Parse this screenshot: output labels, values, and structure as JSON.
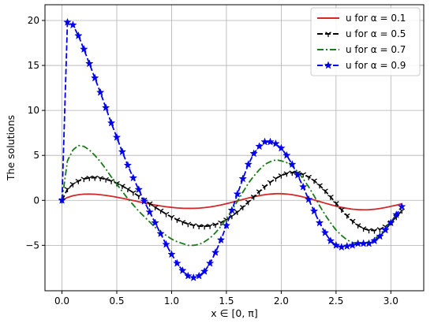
{
  "chart_data": {
    "type": "line",
    "title": "",
    "xlabel": "x ∈ [0, π]",
    "ylabel": "The solutions",
    "xlim": [
      -0.155,
      3.3
    ],
    "ylim": [
      -10.05,
      21.75
    ],
    "xticks": [
      0.0,
      0.5,
      1.0,
      1.5,
      2.0,
      2.5,
      3.0
    ],
    "xtick_labels": [
      "0.0",
      "0.5",
      "1.0",
      "1.5",
      "2.0",
      "2.5",
      "3.0"
    ],
    "yticks": [
      -5,
      0,
      5,
      10,
      15,
      20
    ],
    "ytick_labels": [
      "−5",
      "0",
      "5",
      "10",
      "15",
      "20"
    ],
    "grid": true,
    "legend_position": "top-right",
    "x": [
      0.0,
      0.05,
      0.1,
      0.15,
      0.2,
      0.25,
      0.3,
      0.35,
      0.4,
      0.45,
      0.5,
      0.55,
      0.6,
      0.65,
      0.7,
      0.75,
      0.8,
      0.85,
      0.9,
      0.95,
      1.0,
      1.05,
      1.1,
      1.15,
      1.2,
      1.25,
      1.3,
      1.35,
      1.4,
      1.45,
      1.5,
      1.55,
      1.6,
      1.65,
      1.7,
      1.75,
      1.8,
      1.85,
      1.9,
      1.95,
      2.0,
      2.05,
      2.1,
      2.15,
      2.2,
      2.25,
      2.3,
      2.35,
      2.4,
      2.45,
      2.5,
      2.55,
      2.6,
      2.65,
      2.7,
      2.75,
      2.8,
      2.85,
      2.9,
      2.95,
      3.0,
      3.05,
      3.1
    ],
    "series": [
      {
        "name": "u for α = 0.1",
        "color": "#d62728",
        "style": "solid",
        "marker": "none",
        "values": [
          0.0,
          0.32,
          0.52,
          0.63,
          0.69,
          0.7,
          0.68,
          0.63,
          0.55,
          0.46,
          0.35,
          0.23,
          0.11,
          -0.02,
          -0.15,
          -0.28,
          -0.4,
          -0.52,
          -0.62,
          -0.71,
          -0.78,
          -0.84,
          -0.88,
          -0.89,
          -0.89,
          -0.86,
          -0.81,
          -0.73,
          -0.63,
          -0.51,
          -0.37,
          -0.22,
          -0.06,
          0.1,
          0.26,
          0.4,
          0.53,
          0.63,
          0.7,
          0.74,
          0.74,
          0.7,
          0.63,
          0.52,
          0.38,
          0.22,
          0.05,
          -0.13,
          -0.31,
          -0.48,
          -0.64,
          -0.78,
          -0.89,
          -0.98,
          -1.03,
          -1.05,
          -1.04,
          -0.99,
          -0.91,
          -0.8,
          -0.67,
          -0.53,
          -0.38
        ]
      },
      {
        "name": "u for α = 0.5",
        "color": "#000000",
        "style": "dashed",
        "marker": "tri_down",
        "values": [
          0.0,
          1.25,
          1.8,
          2.15,
          2.38,
          2.5,
          2.52,
          2.47,
          2.34,
          2.15,
          1.9,
          1.6,
          1.25,
          0.87,
          0.47,
          0.06,
          -0.35,
          -0.76,
          -1.15,
          -1.52,
          -1.86,
          -2.16,
          -2.42,
          -2.63,
          -2.78,
          -2.87,
          -2.9,
          -2.84,
          -2.7,
          -2.47,
          -2.15,
          -1.75,
          -1.28,
          -0.75,
          -0.18,
          0.4,
          0.98,
          1.52,
          2.01,
          2.43,
          2.76,
          2.98,
          3.08,
          3.05,
          2.89,
          2.6,
          2.19,
          1.67,
          1.06,
          0.39,
          -0.32,
          -1.03,
          -1.7,
          -2.3,
          -2.78,
          -3.13,
          -3.33,
          -3.36,
          -3.22,
          -2.92,
          -2.45,
          -1.85,
          -1.14
        ]
      },
      {
        "name": "u for α = 0.7",
        "color": "#1a7a1a",
        "style": "dashdot",
        "marker": "none",
        "values": [
          0.0,
          4.4,
          5.6,
          6.1,
          6.0,
          5.6,
          5.0,
          4.3,
          3.5,
          2.6,
          1.8,
          1.0,
          0.2,
          -0.5,
          -1.2,
          -1.8,
          -2.4,
          -3.0,
          -3.5,
          -3.9,
          -4.3,
          -4.6,
          -4.8,
          -5.0,
          -5.0,
          -4.9,
          -4.6,
          -4.2,
          -3.6,
          -2.9,
          -2.0,
          -1.1,
          -0.1,
          0.9,
          1.9,
          2.7,
          3.4,
          4.0,
          4.3,
          4.5,
          4.4,
          4.2,
          3.8,
          3.2,
          2.4,
          1.5,
          0.5,
          -0.6,
          -1.6,
          -2.5,
          -3.3,
          -3.9,
          -4.4,
          -4.7,
          -4.8,
          -4.8,
          -4.6,
          -4.3,
          -3.8,
          -3.1,
          -2.4,
          -1.6,
          -0.7
        ]
      },
      {
        "name": "u for α = 0.9",
        "color": "#0000ee",
        "style": "dashed",
        "marker": "star",
        "values": [
          0.0,
          19.8,
          19.5,
          18.3,
          16.8,
          15.2,
          13.6,
          12.0,
          10.3,
          8.6,
          7.0,
          5.4,
          3.9,
          2.5,
          1.2,
          -0.1,
          -1.3,
          -2.5,
          -3.7,
          -4.9,
          -6.0,
          -7.0,
          -7.8,
          -8.4,
          -8.6,
          -8.4,
          -7.9,
          -7.0,
          -5.8,
          -4.4,
          -2.8,
          -1.1,
          0.7,
          2.4,
          4.0,
          5.2,
          6.0,
          6.5,
          6.5,
          6.3,
          5.8,
          5.0,
          4.0,
          2.8,
          1.5,
          0.1,
          -1.2,
          -2.5,
          -3.6,
          -4.5,
          -5.0,
          -5.2,
          -5.1,
          -5.0,
          -4.8,
          -4.8,
          -4.8,
          -4.5,
          -4.0,
          -3.3,
          -2.5,
          -1.6,
          -0.7
        ]
      }
    ]
  }
}
